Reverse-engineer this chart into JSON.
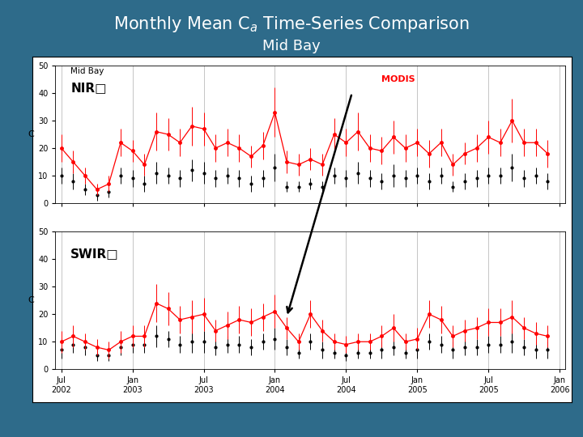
{
  "background_color": "#2E6B8A",
  "panel_bg": "#FFFFFF",
  "label_NIR": "NIR□",
  "label_SWIR": "SWIR□",
  "label_MODIS": "MODIS",
  "ylabel": "C",
  "ylim": [
    0,
    50
  ],
  "yticks": [
    0,
    10,
    20,
    30,
    40,
    50
  ],
  "xtick_labels": [
    "Jul\n2002",
    "Jan\n2003",
    "Jul\n2003",
    "Jan\n2004",
    "Jul\n2004",
    "Jan\n2005",
    "Jul\n2005",
    "Jan\n2006"
  ],
  "nir_red": [
    20,
    15,
    10,
    5,
    7,
    22,
    19,
    14,
    26,
    25,
    22,
    28,
    27,
    20,
    22,
    20,
    17,
    21,
    33,
    15,
    14,
    16,
    14,
    25,
    22,
    26,
    20,
    19,
    24,
    20,
    22,
    18,
    22,
    14,
    18,
    20,
    24,
    22,
    30,
    22,
    22,
    18
  ],
  "nir_black": [
    10,
    8,
    5,
    3,
    4,
    10,
    9,
    7,
    11,
    10,
    9,
    12,
    11,
    9,
    10,
    9,
    7,
    9,
    13,
    6,
    6,
    7,
    6,
    10,
    9,
    11,
    9,
    8,
    10,
    9,
    10,
    8,
    10,
    6,
    8,
    9,
    10,
    10,
    13,
    9,
    10,
    8
  ],
  "swir_red": [
    10,
    12,
    10,
    8,
    7,
    10,
    12,
    12,
    24,
    22,
    18,
    19,
    20,
    14,
    16,
    18,
    17,
    19,
    21,
    15,
    10,
    20,
    14,
    10,
    9,
    10,
    10,
    12,
    15,
    10,
    11,
    20,
    18,
    12,
    14,
    15,
    17,
    17,
    19,
    15,
    13,
    12
  ],
  "swir_black": [
    7,
    9,
    8,
    5,
    5,
    8,
    9,
    9,
    12,
    11,
    9,
    10,
    10,
    8,
    9,
    9,
    8,
    10,
    11,
    8,
    6,
    10,
    7,
    6,
    5,
    6,
    6,
    7,
    8,
    6,
    7,
    10,
    9,
    7,
    8,
    8,
    9,
    9,
    10,
    8,
    7,
    7
  ],
  "nir_red_err": [
    5,
    4,
    3,
    2,
    3,
    5,
    4,
    4,
    7,
    6,
    5,
    7,
    6,
    5,
    5,
    5,
    4,
    5,
    9,
    4,
    4,
    4,
    4,
    6,
    5,
    7,
    5,
    5,
    6,
    5,
    5,
    5,
    5,
    4,
    4,
    5,
    6,
    5,
    8,
    5,
    5,
    5
  ],
  "nir_black_err": [
    3,
    3,
    2,
    2,
    2,
    3,
    3,
    3,
    4,
    3,
    3,
    4,
    4,
    3,
    3,
    3,
    3,
    3,
    5,
    2,
    2,
    2,
    2,
    3,
    3,
    4,
    3,
    3,
    4,
    3,
    3,
    3,
    3,
    2,
    3,
    3,
    3,
    3,
    5,
    3,
    3,
    3
  ],
  "swir_red_err": [
    4,
    4,
    3,
    3,
    3,
    4,
    4,
    4,
    7,
    6,
    5,
    6,
    6,
    4,
    5,
    5,
    5,
    5,
    6,
    4,
    3,
    5,
    4,
    3,
    3,
    3,
    3,
    4,
    5,
    3,
    4,
    5,
    5,
    4,
    4,
    4,
    5,
    5,
    6,
    4,
    4,
    4
  ],
  "swir_black_err": [
    3,
    3,
    3,
    2,
    2,
    3,
    3,
    3,
    4,
    3,
    3,
    4,
    4,
    3,
    3,
    3,
    3,
    3,
    4,
    3,
    2,
    3,
    3,
    2,
    2,
    2,
    2,
    3,
    3,
    2,
    3,
    3,
    3,
    3,
    3,
    3,
    3,
    3,
    4,
    3,
    3,
    3
  ]
}
